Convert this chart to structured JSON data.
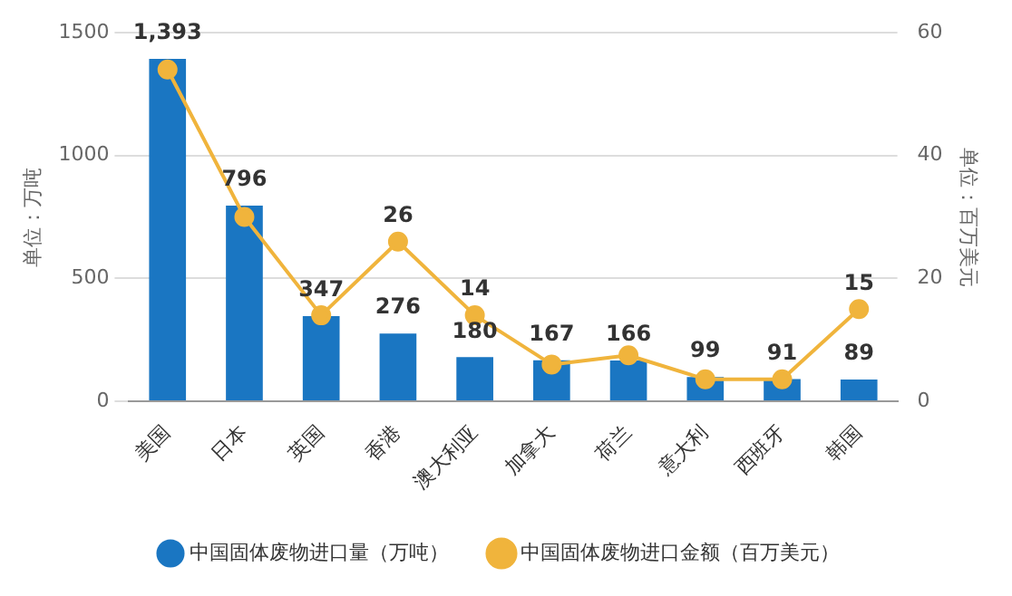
{
  "chart_data": {
    "type": "bar",
    "categories": [
      "美国",
      "日本",
      "英国",
      "香港",
      "澳大利亚",
      "加拿大",
      "荷兰",
      "意大利",
      "西班牙",
      "韩国"
    ],
    "series": [
      {
        "name": "中国固体废物进口量（万吨）",
        "color": "#1a76c2",
        "values": [
          1393,
          796,
          347,
          276,
          180,
          167,
          166,
          99,
          91,
          89
        ],
        "value_labels": [
          "1,393",
          "796",
          "347",
          "276",
          "180",
          "167",
          "166",
          "99",
          "91",
          "89"
        ]
      },
      {
        "name": "中国固体废物进口金额（百万美元）",
        "type": "line",
        "axis": "y2",
        "color": "#f0b43c",
        "values": [
          54,
          30,
          14,
          26,
          14,
          6,
          7.5,
          3.6,
          3.6,
          15
        ],
        "value_labels": [
          null,
          null,
          null,
          "26",
          "14",
          null,
          null,
          null,
          null,
          "15"
        ]
      }
    ],
    "ylabel": "单位：万吨",
    "y2label": "单位：百万美元",
    "ylim": [
      0,
      1500
    ],
    "yticks": [
      0,
      500,
      1000,
      1500
    ],
    "y2lim": [
      0,
      60
    ],
    "y2ticks": [
      0,
      20,
      40,
      60
    ],
    "grid": "y",
    "legend": "bottom",
    "marker": "circle"
  }
}
